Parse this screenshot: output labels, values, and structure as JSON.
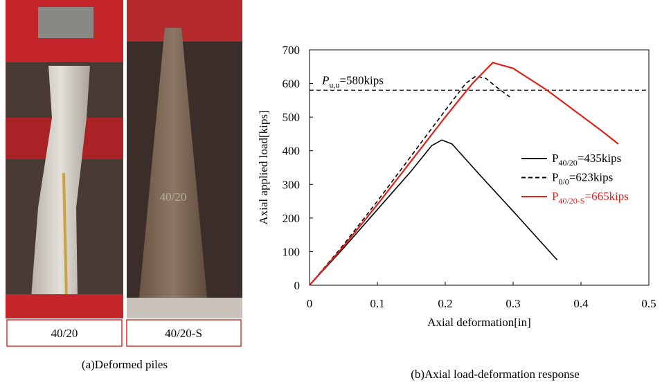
{
  "figure": {
    "photos": [
      {
        "label": "40/20"
      },
      {
        "label": "40/20-S",
        "marking": "40/20"
      }
    ],
    "captions": [
      "(a)Deformed piles",
      "(b)Axial load-deformation response"
    ]
  },
  "chart_data": {
    "type": "line",
    "x_label": "Axial deformation[in]",
    "y_label": "Axial applied load[kips]",
    "xlim": [
      0,
      0.5
    ],
    "xticks": [
      0,
      0.1,
      0.2,
      0.3,
      0.4,
      0.5
    ],
    "ylim": [
      0,
      700
    ],
    "yticks": [
      0,
      100,
      200,
      300,
      400,
      500,
      600,
      700
    ],
    "legend": "right",
    "reference_lines": [
      {
        "value": 580,
        "label": "P",
        "label_sub": "u,u",
        "label_suffix": "=580kips",
        "dash": true,
        "color": "#000000"
      }
    ],
    "series": [
      {
        "name": "P",
        "name_sub": "40/20",
        "name_suffix": "=435kips",
        "color": "#000000",
        "dash": false,
        "x": [
          0,
          0.05,
          0.1,
          0.15,
          0.18,
          0.195,
          0.21,
          0.25,
          0.3,
          0.365
        ],
        "values": [
          0,
          110,
          225,
          340,
          415,
          432,
          420,
          330,
          220,
          75
        ]
      },
      {
        "name": "P",
        "name_sub": "0/0",
        "name_suffix": "=623kips",
        "color": "#000000",
        "dash": true,
        "x": [
          0,
          0.05,
          0.1,
          0.15,
          0.2,
          0.23,
          0.245,
          0.26,
          0.275,
          0.295
        ],
        "values": [
          0,
          120,
          250,
          385,
          520,
          600,
          622,
          615,
          590,
          560
        ]
      },
      {
        "name": "P",
        "name_sub": "40/20-S",
        "name_suffix": "=665kips",
        "color": "#e0201b",
        "dash": false,
        "x": [
          0,
          0.05,
          0.1,
          0.15,
          0.2,
          0.24,
          0.27,
          0.3,
          0.35,
          0.4,
          0.43,
          0.455
        ],
        "values": [
          0,
          115,
          240,
          370,
          500,
          600,
          662,
          645,
          580,
          505,
          460,
          420
        ]
      }
    ]
  }
}
